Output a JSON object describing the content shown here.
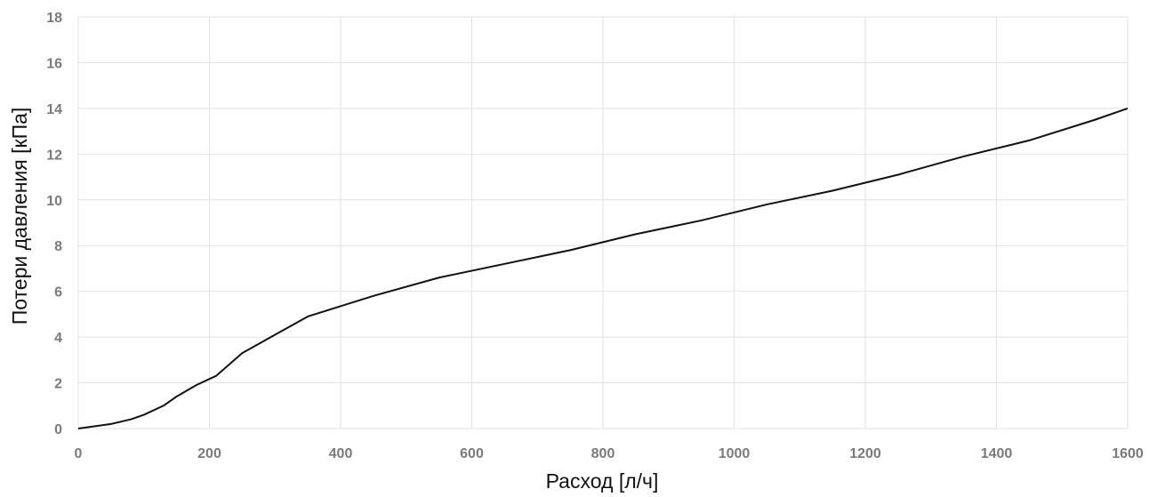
{
  "chart_data": {
    "type": "line",
    "title": "",
    "xlabel": "Расход [л/ч]",
    "ylabel": "Потери давления [кПа]",
    "xlim": [
      0,
      1600
    ],
    "ylim": [
      0,
      18
    ],
    "xticks": [
      0,
      200,
      400,
      600,
      800,
      1000,
      1200,
      1400,
      1600
    ],
    "yticks": [
      0,
      2,
      4,
      6,
      8,
      10,
      12,
      14,
      16,
      18
    ],
    "grid": true,
    "legend": "none",
    "series": [
      {
        "color": "#111111",
        "x": [
          0,
          50,
          80,
          100,
          130,
          150,
          180,
          210,
          250,
          300,
          350,
          450,
          550,
          650,
          750,
          850,
          950,
          1050,
          1150,
          1250,
          1350,
          1450,
          1550,
          1600
        ],
        "y": [
          0,
          0.2,
          0.4,
          0.6,
          1.0,
          1.4,
          1.9,
          2.3,
          3.3,
          4.1,
          4.9,
          5.8,
          6.6,
          7.2,
          7.8,
          8.5,
          9.1,
          9.8,
          10.4,
          11.1,
          11.9,
          12.6,
          13.5,
          14.0
        ]
      }
    ]
  }
}
